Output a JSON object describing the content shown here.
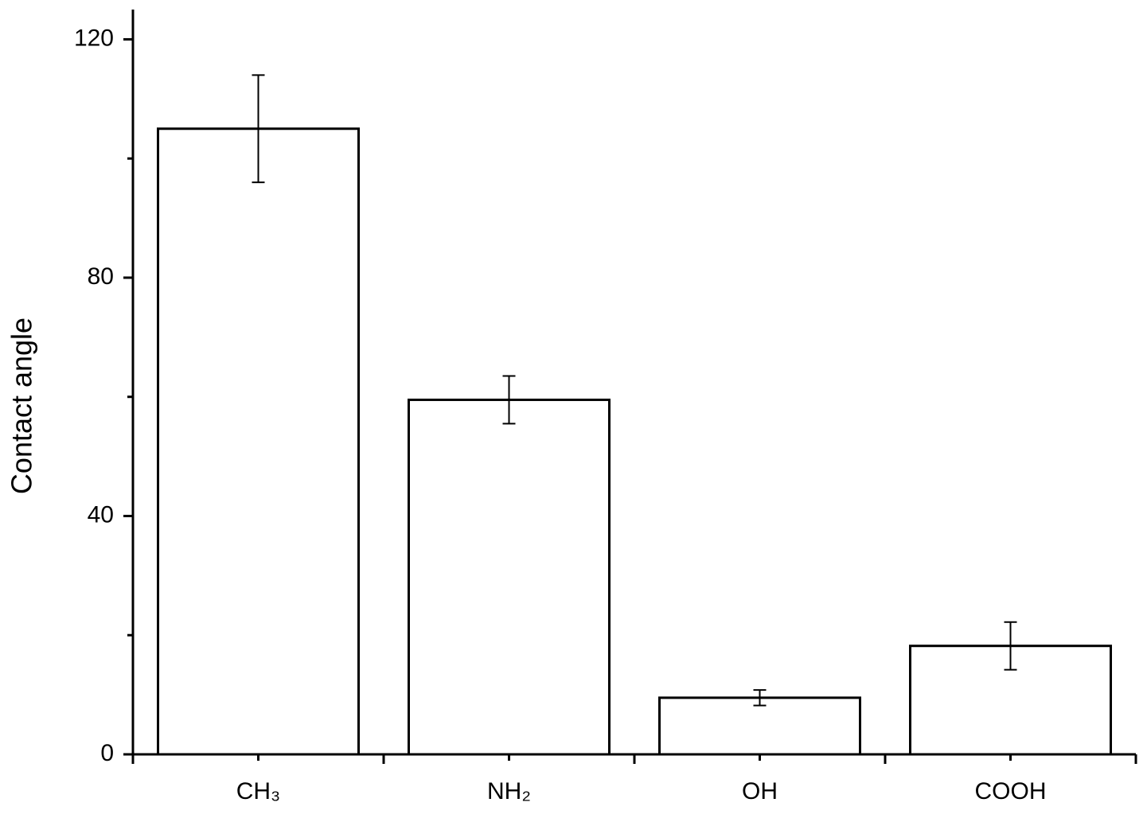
{
  "chart_data": {
    "type": "bar",
    "y_label": "Contact angle",
    "categories": [
      "CH₃",
      "NH₂",
      "OH",
      "COOH"
    ],
    "values": [
      105,
      59.5,
      9.5,
      18.2
    ],
    "errors": [
      9,
      4,
      1.3,
      4
    ],
    "color": "#ffffff",
    "ylim": [
      0,
      125
    ],
    "yticks": [
      0,
      40,
      80,
      120
    ],
    "yminor_ticks": [
      20,
      60,
      100
    ]
  }
}
